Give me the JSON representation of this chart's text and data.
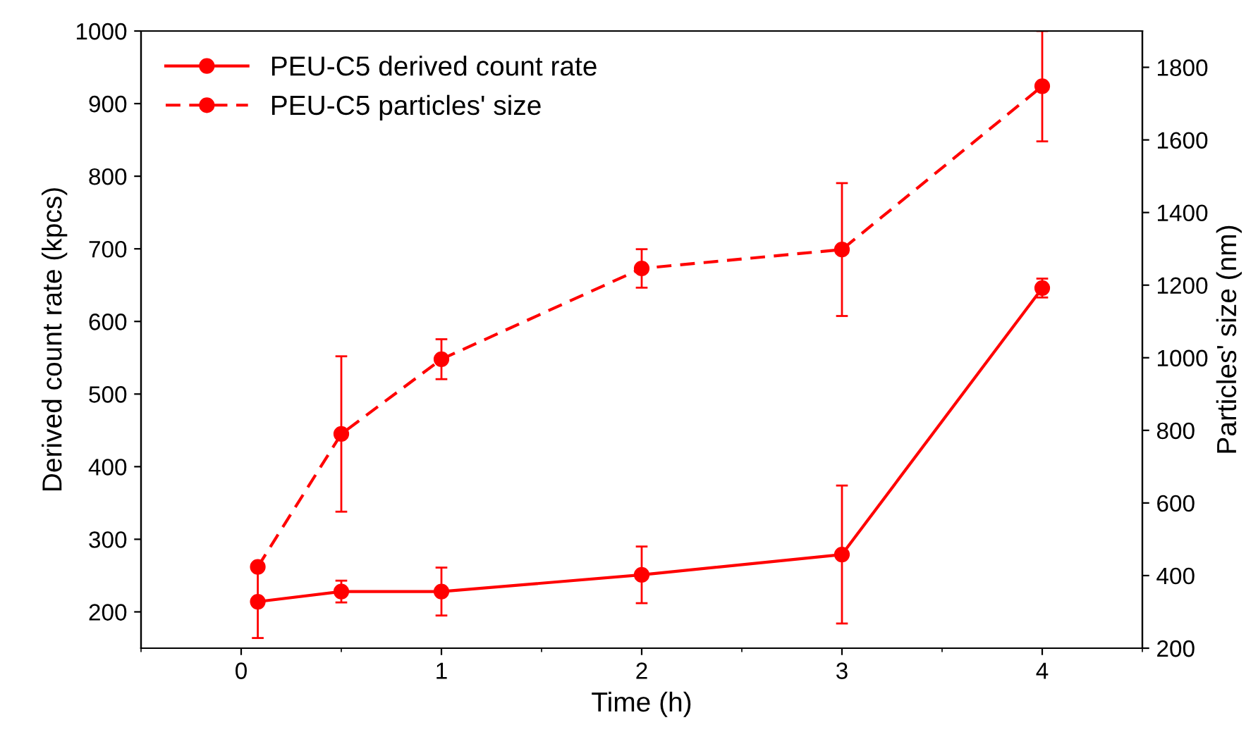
{
  "chart_data": {
    "type": "line",
    "xlabel": "Time (h)",
    "ylabel": "Derived count rate (kpcs)",
    "y2label": "Particles' size (nm)",
    "x": [
      0.083,
      0.5,
      1,
      2,
      3,
      4
    ],
    "series": [
      {
        "name": "PEU-C5 derived count rate",
        "color": "#ff0000",
        "values": [
          214,
          228,
          228,
          251,
          279,
          646
        ],
        "errors": [
          50,
          15,
          33,
          39,
          95,
          13
        ],
        "line_style": "solid"
      },
      {
        "name": "PEU-C5 particles' size",
        "color": "#ff0000",
        "values": [
          424,
          790,
          996,
          1246,
          1298,
          1748
        ],
        "errors": [
          10,
          214,
          55,
          53,
          183,
          152
        ],
        "line_style": "dashed",
        "axis": "y2"
      }
    ],
    "xlim": [
      -0.5,
      4.5
    ],
    "xticks": [
      {
        "value": -0.5,
        "label": null
      },
      0,
      {
        "value": 0.5,
        "label": null
      },
      1,
      {
        "value": 1.5,
        "label": null
      },
      2,
      {
        "value": 2.5,
        "label": null
      },
      3,
      {
        "value": 3.5,
        "label": null
      },
      4,
      {
        "value": 4.5,
        "label": null
      }
    ],
    "ylim": [
      150,
      1000
    ],
    "yticks": [
      200,
      300,
      400,
      500,
      600,
      700,
      800,
      900,
      1000
    ],
    "y2lim": [
      200,
      1900
    ],
    "y2ticks": [
      200,
      400,
      600,
      800,
      1000,
      1200,
      1400,
      1600,
      1800
    ],
    "marker": "circle",
    "grid": false,
    "legend": "top left"
  }
}
